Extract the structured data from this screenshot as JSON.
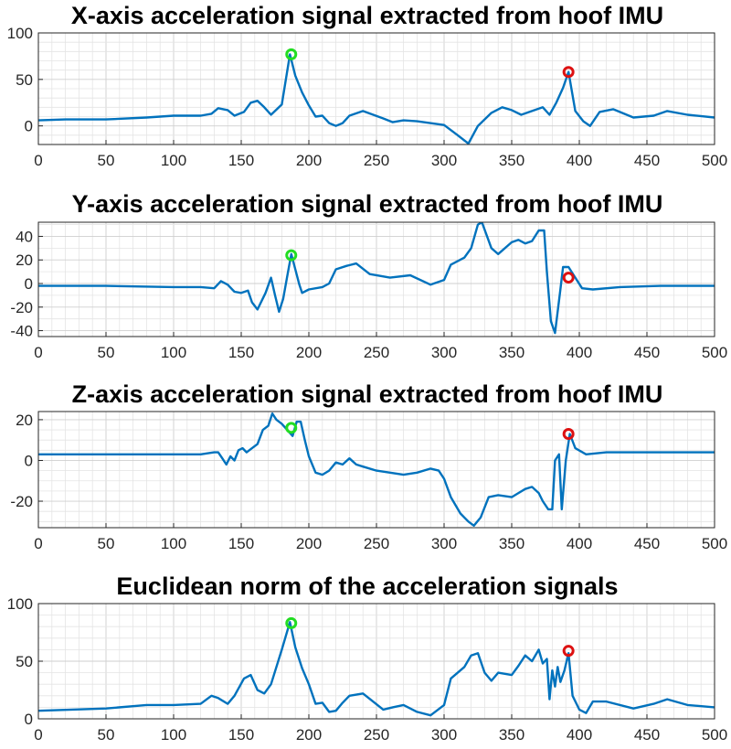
{
  "colors": {
    "line": "#0072BD",
    "peak_green": "#22dd22",
    "peak_red": "#dd1111"
  },
  "chart_data": [
    {
      "type": "line",
      "title": "X-axis acceleration signal extracted from hoof IMU",
      "xlabel": "",
      "ylabel": "",
      "xlim": [
        0,
        500
      ],
      "ylim": [
        -20,
        100
      ],
      "xticks": [
        0,
        50,
        100,
        150,
        200,
        250,
        300,
        350,
        400,
        450,
        500
      ],
      "yticks": [
        0,
        50,
        100
      ],
      "grid": true,
      "x": [
        0,
        20,
        50,
        80,
        100,
        120,
        128,
        133,
        140,
        145,
        152,
        157,
        162,
        167,
        172,
        180,
        186,
        190,
        195,
        200,
        205,
        210,
        215,
        220,
        225,
        230,
        240,
        255,
        262,
        270,
        280,
        300,
        310,
        318,
        325,
        335,
        343,
        350,
        357,
        365,
        373,
        378,
        383,
        388,
        392,
        397,
        403,
        408,
        415,
        425,
        440,
        455,
        465,
        480,
        500
      ],
      "y": [
        6,
        7,
        7,
        9,
        11,
        11,
        13,
        19,
        17,
        11,
        15,
        25,
        27,
        20,
        12,
        23,
        77,
        54,
        36,
        22,
        10,
        11,
        3,
        0,
        3,
        11,
        16,
        8,
        4,
        6,
        5,
        1,
        -10,
        -19,
        0,
        14,
        20,
        17,
        12,
        16,
        20,
        12,
        25,
        41,
        58,
        16,
        5,
        0,
        15,
        18,
        9,
        11,
        16,
        12,
        9
      ],
      "peaks": [
        {
          "x": 187,
          "y": 77,
          "marker": "green-circle"
        },
        {
          "x": 392,
          "y": 58,
          "marker": "red-circle"
        }
      ]
    },
    {
      "type": "line",
      "title": "Y-axis acceleration signal extracted from hoof IMU",
      "xlabel": "",
      "ylabel": "",
      "xlim": [
        0,
        500
      ],
      "ylim": [
        -45,
        52
      ],
      "xticks": [
        0,
        50,
        100,
        150,
        200,
        250,
        300,
        350,
        400,
        450,
        500
      ],
      "yticks": [
        -40,
        -20,
        0,
        20,
        40
      ],
      "grid": true,
      "x": [
        0,
        50,
        100,
        120,
        130,
        135,
        140,
        145,
        150,
        155,
        158,
        162,
        168,
        172,
        175,
        178,
        181,
        184,
        187,
        190,
        193,
        195,
        200,
        210,
        215,
        220,
        228,
        235,
        245,
        260,
        275,
        290,
        300,
        305,
        315,
        320,
        325,
        328,
        335,
        340,
        350,
        355,
        360,
        365,
        370,
        374,
        376,
        379,
        382,
        386,
        388,
        392,
        397,
        402,
        410,
        430,
        460,
        500
      ],
      "y": [
        -2,
        -2,
        -3,
        -3,
        -4,
        2,
        -1,
        -7,
        -8,
        -6,
        -16,
        -22,
        -8,
        5,
        -10,
        -24,
        -13,
        6,
        25,
        12,
        -1,
        -8,
        -5,
        -3,
        0,
        12,
        15,
        17,
        8,
        5,
        7,
        -1,
        3,
        16,
        22,
        30,
        50,
        52,
        30,
        25,
        35,
        37,
        34,
        36,
        45,
        45,
        10,
        -32,
        -42,
        -5,
        14,
        14,
        5,
        -4,
        -5,
        -3,
        -2,
        -2
      ],
      "peaks": [
        {
          "x": 187,
          "y": 24,
          "marker": "green-circle"
        },
        {
          "x": 392,
          "y": 5,
          "marker": "red-circle"
        }
      ]
    },
    {
      "type": "line",
      "title": "Z-axis acceleration signal extracted from hoof IMU",
      "xlabel": "",
      "ylabel": "",
      "xlim": [
        0,
        500
      ],
      "ylim": [
        -33,
        24
      ],
      "xticks": [
        0,
        50,
        100,
        150,
        200,
        250,
        300,
        350,
        400,
        450,
        500
      ],
      "yticks": [
        -20,
        0,
        20
      ],
      "grid": true,
      "x": [
        0,
        50,
        100,
        120,
        130,
        133,
        136,
        139,
        142,
        145,
        148,
        151,
        154,
        158,
        162,
        166,
        170,
        173,
        176,
        180,
        184,
        188,
        191,
        194,
        197,
        200,
        205,
        210,
        215,
        220,
        225,
        230,
        235,
        240,
        250,
        260,
        270,
        280,
        290,
        296,
        300,
        305,
        312,
        318,
        322,
        327,
        333,
        340,
        350,
        355,
        360,
        365,
        370,
        373,
        377,
        380,
        382,
        385,
        387,
        390,
        393,
        397,
        405,
        420,
        450,
        500
      ],
      "y": [
        3,
        3,
        3,
        3,
        4,
        4,
        1,
        -2,
        2,
        0,
        5,
        6,
        4,
        6,
        8,
        15,
        17,
        23,
        20,
        18,
        15,
        12,
        19,
        19,
        10,
        2,
        -6,
        -7,
        -5,
        -1,
        -2,
        1,
        -2,
        -3,
        -5,
        -6,
        -7,
        -6,
        -4,
        -5,
        -9,
        -18,
        -26,
        -30,
        -32,
        -28,
        -18,
        -17,
        -18,
        -16,
        -14,
        -13,
        -16,
        -20,
        -24,
        -24,
        0,
        3,
        -24,
        0,
        13,
        6,
        3,
        4,
        4,
        4
      ],
      "peaks": [
        {
          "x": 187,
          "y": 16,
          "marker": "green-circle"
        },
        {
          "x": 392,
          "y": 13,
          "marker": "red-circle"
        }
      ]
    },
    {
      "type": "line",
      "title": "Euclidean norm of the acceleration signals",
      "xlabel": "",
      "ylabel": "",
      "xlim": [
        0,
        500
      ],
      "ylim": [
        0,
        100
      ],
      "xticks": [
        0,
        50,
        100,
        150,
        200,
        250,
        300,
        350,
        400,
        450,
        500
      ],
      "yticks": [
        0,
        50,
        100
      ],
      "grid": true,
      "x": [
        0,
        50,
        80,
        100,
        120,
        128,
        133,
        140,
        145,
        152,
        157,
        162,
        167,
        172,
        180,
        186,
        190,
        195,
        200,
        205,
        210,
        215,
        220,
        225,
        230,
        240,
        255,
        262,
        270,
        280,
        290,
        300,
        305,
        315,
        320,
        325,
        330,
        335,
        340,
        350,
        355,
        360,
        365,
        370,
        373,
        376,
        378,
        380,
        382,
        384,
        386,
        389,
        392,
        395,
        400,
        405,
        410,
        420,
        440,
        455,
        465,
        480,
        500
      ],
      "y": [
        7,
        9,
        12,
        12,
        13,
        20,
        18,
        13,
        20,
        35,
        38,
        25,
        22,
        30,
        60,
        84,
        62,
        44,
        30,
        13,
        14,
        6,
        7,
        14,
        20,
        22,
        8,
        10,
        12,
        6,
        3,
        12,
        35,
        45,
        55,
        57,
        40,
        33,
        40,
        38,
        46,
        55,
        50,
        60,
        48,
        52,
        17,
        42,
        28,
        45,
        32,
        42,
        57,
        20,
        8,
        5,
        15,
        15,
        9,
        13,
        17,
        12,
        10
      ],
      "peaks": [
        {
          "x": 187,
          "y": 83,
          "marker": "green-circle"
        },
        {
          "x": 392,
          "y": 59,
          "marker": "red-circle"
        }
      ]
    }
  ]
}
